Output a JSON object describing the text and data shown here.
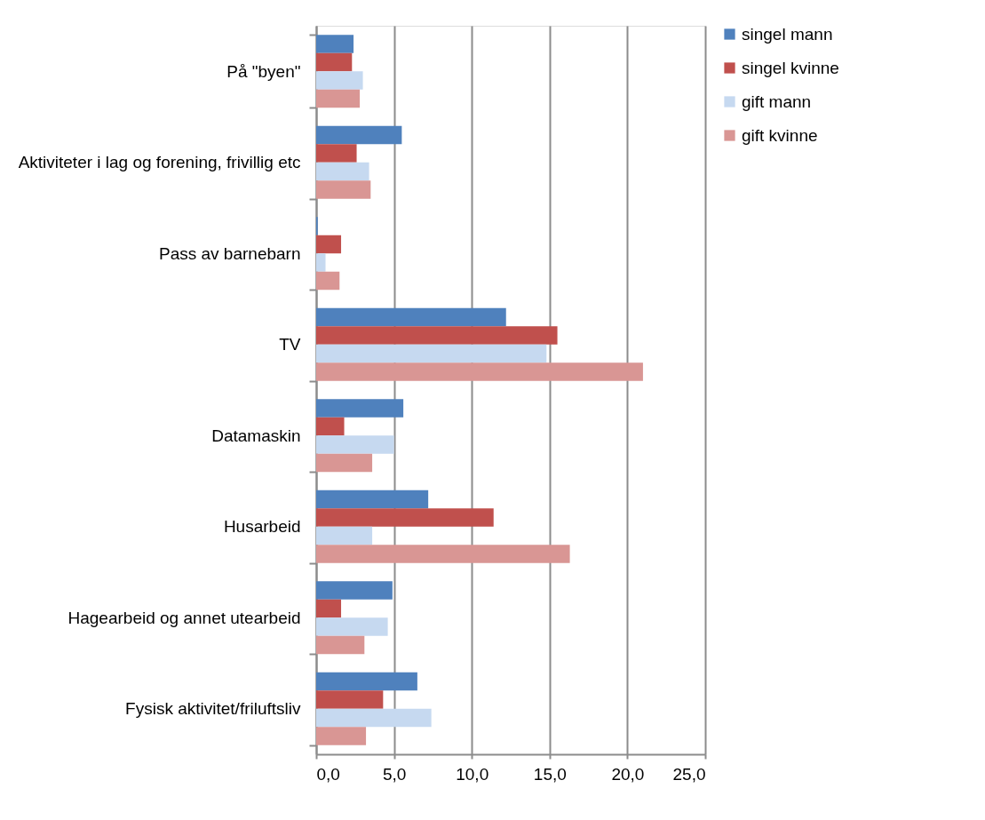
{
  "chart_data": {
    "type": "bar",
    "orientation": "horizontal",
    "categories": [
      "På \"byen\"",
      "Aktiviteter i lag og forening, frivillig etc",
      "Pass av barnebarn",
      "TV",
      "Datamaskin",
      "Husarbeid",
      "Hagearbeid og annet utearbeid",
      "Fysisk aktivitet/friluftsliv"
    ],
    "series": [
      {
        "name": "singel mann",
        "color": "#4f81bd",
        "values": [
          2.4,
          5.5,
          0.1,
          12.2,
          5.6,
          7.2,
          4.9,
          6.5
        ]
      },
      {
        "name": "singel kvinne",
        "color": "#c0504d",
        "values": [
          2.3,
          2.6,
          1.6,
          15.5,
          1.8,
          11.4,
          1.6,
          4.3
        ]
      },
      {
        "name": "gift mann",
        "color": "#c6d9f0",
        "values": [
          3.0,
          3.4,
          0.6,
          14.8,
          5.0,
          3.6,
          4.6,
          7.4
        ]
      },
      {
        "name": "gift kvinne",
        "color": "#d99694",
        "values": [
          2.8,
          3.5,
          1.5,
          21.0,
          3.6,
          16.3,
          3.1,
          3.2
        ]
      }
    ],
    "xlim": [
      0,
      25
    ],
    "xticks": [
      {
        "value": 0,
        "label": "0,0"
      },
      {
        "value": 5,
        "label": "5,0"
      },
      {
        "value": 10,
        "label": "10,0"
      },
      {
        "value": 15,
        "label": "15,0"
      },
      {
        "value": 20,
        "label": "20,0"
      },
      {
        "value": 25,
        "label": "25,0"
      }
    ],
    "grid": "x",
    "legend": "right"
  }
}
